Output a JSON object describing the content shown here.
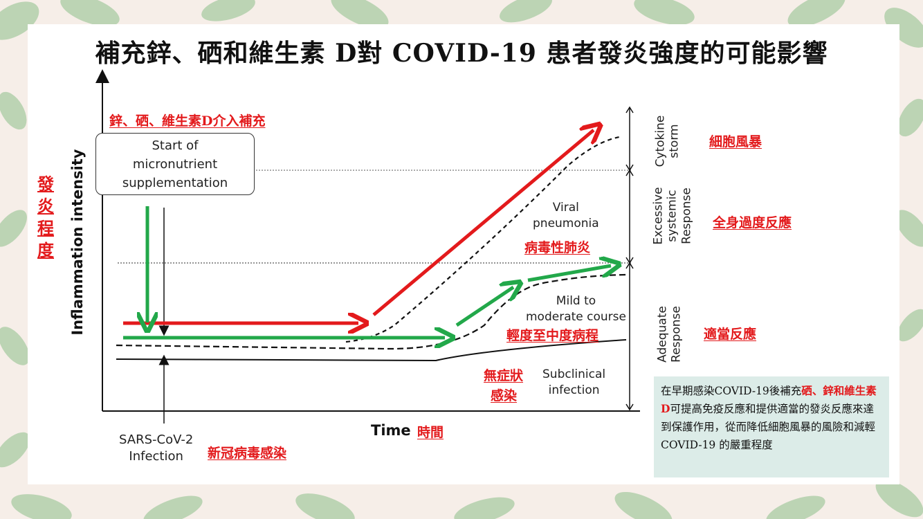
{
  "title": "補充鋅、硒和維生素 D對 COVID-19 患者發炎強度的可能影響",
  "y_axis": {
    "label_en": "Inflammation intensity",
    "label_cn": "發炎程度"
  },
  "x_axis": {
    "label_en": "Time",
    "label_cn": "時間"
  },
  "supplement": {
    "label_cn": "鋅、硒、維生素D介入補充",
    "box_text": "Start of\nmicronutrient\nsupplementation"
  },
  "infection": {
    "label_en": "SARS-CoV-2\nInfection",
    "label_cn": "新冠病毒感染"
  },
  "curves": {
    "viral_pneumonia_en": "Viral\npneumonia",
    "viral_pneumonia_cn": "病毒性肺炎",
    "mild_en": "Mild to\nmoderate course",
    "mild_cn": "輕度至中度病程",
    "subclinical_en": "Subclinical\ninfection",
    "subclinical_cn_1": "無症狀",
    "subclinical_cn_2": "感染"
  },
  "zones": {
    "cytokine_en": "Cytokine\nstorm",
    "cytokine_cn": "細胞風暴",
    "excessive_en": "Excessive\nsystemic\nResponse",
    "excessive_cn": "全身過度反應",
    "adequate_en": "Adequate\nResponse",
    "adequate_cn": "適當反應"
  },
  "note": {
    "part1": "在早期感染COVID-19後補充",
    "highlight": "硒、鋅和維生素D",
    "part2": "可提高免疫反應和提供適當的發炎反應來達到保護作用，從而降低細胞風暴的風險和減輕 COVID-19 的嚴重程度"
  },
  "colors": {
    "red": "#e31a1c",
    "green": "#22a84a",
    "note_bg": "#dcece8",
    "leaf": "#9fc49a"
  }
}
